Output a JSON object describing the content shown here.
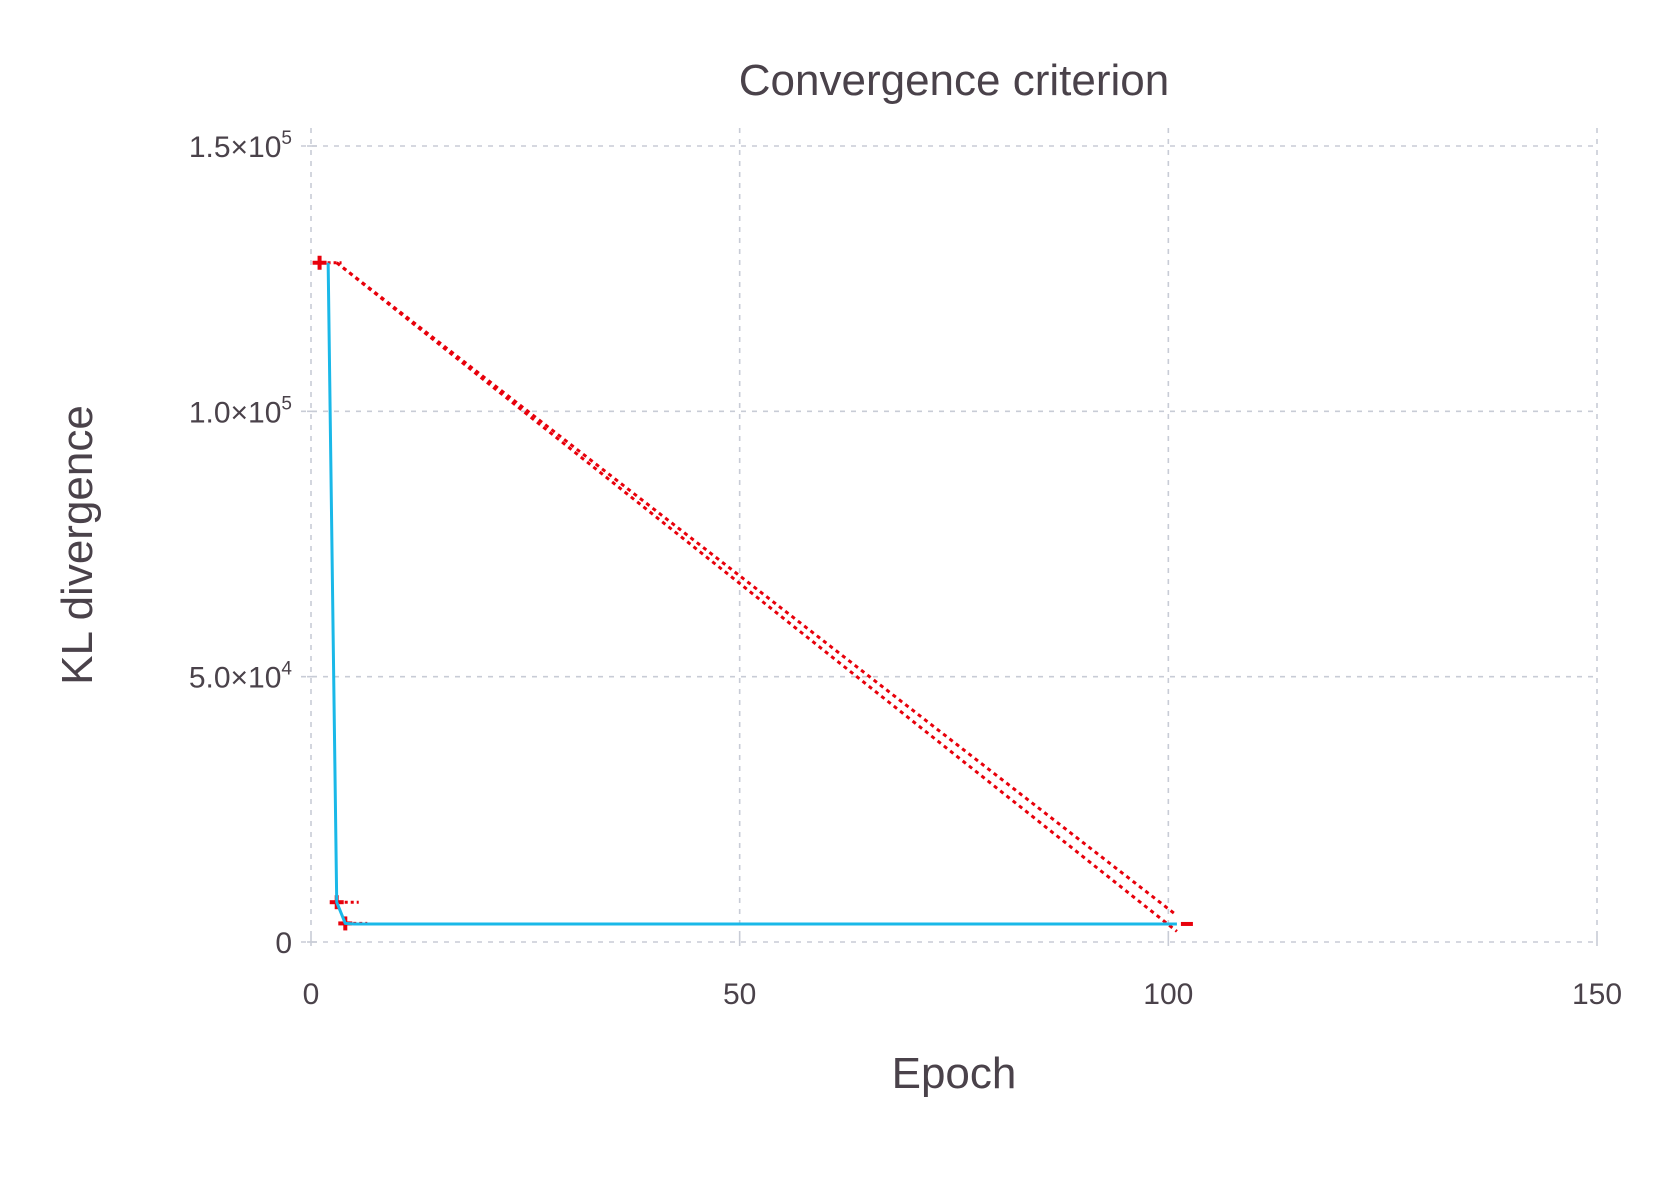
{
  "chart_data": {
    "type": "line",
    "title": "Convergence criterion",
    "xlabel": "Epoch",
    "ylabel": "KL divergence",
    "xlim": [
      0,
      150
    ],
    "ylim": [
      0,
      150000
    ],
    "grid": true,
    "x_ticks": [
      {
        "value": 0,
        "label": "0"
      },
      {
        "value": 50,
        "label": "50"
      },
      {
        "value": 100,
        "label": "100"
      },
      {
        "value": 150,
        "label": "150"
      }
    ],
    "y_ticks": [
      {
        "value": 0,
        "mantissa": "0",
        "exp": ""
      },
      {
        "value": 50000,
        "mantissa": "5.0×10",
        "exp": "4"
      },
      {
        "value": 100000,
        "mantissa": "1.0×10",
        "exp": "5"
      },
      {
        "value": 150000,
        "mantissa": "1.5×10",
        "exp": "5"
      }
    ],
    "series": [
      {
        "color": "#1ab8e8",
        "x": [
          2,
          3,
          4,
          5,
          10,
          20,
          30,
          40,
          50,
          60,
          70,
          80,
          90,
          100,
          101
        ],
        "y": [
          128000,
          7500,
          3500,
          3400,
          3400,
          3400,
          3400,
          3400,
          3400,
          3400,
          3400,
          3400,
          3400,
          3400,
          3400
        ]
      }
    ],
    "bounds": {
      "color": "#e8000b",
      "markers": [
        {
          "x": 1,
          "y": 128000
        },
        {
          "x": 3,
          "y": 7500
        },
        {
          "x": 4,
          "y": 3500
        }
      ],
      "upper_line": {
        "x": [
          3,
          101
        ],
        "y": [
          128000,
          5000
        ]
      },
      "lower_line": {
        "x": [
          3,
          101
        ],
        "y": [
          128000,
          2000
        ]
      }
    }
  }
}
